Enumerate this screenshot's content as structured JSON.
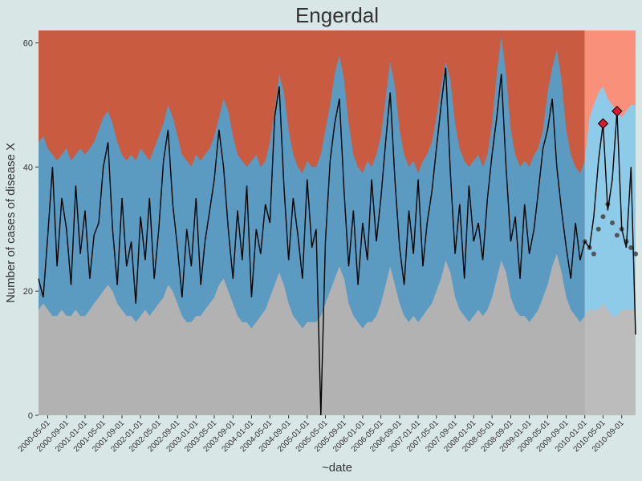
{
  "chart_data": {
    "type": "area",
    "title": "Engerdal",
    "xlabel": "~date",
    "ylabel": "Number of cases of disease X",
    "x": [
      "2000-03-01",
      "2000-04-01",
      "2000-05-01",
      "2000-06-01",
      "2000-07-01",
      "2000-08-01",
      "2000-09-01",
      "2000-10-01",
      "2000-11-01",
      "2000-12-01",
      "2001-01-01",
      "2001-02-01",
      "2001-03-01",
      "2001-04-01",
      "2001-05-01",
      "2001-06-01",
      "2001-07-01",
      "2001-08-01",
      "2001-09-01",
      "2001-10-01",
      "2001-11-01",
      "2001-12-01",
      "2002-01-01",
      "2002-02-01",
      "2002-03-01",
      "2002-04-01",
      "2002-05-01",
      "2002-06-01",
      "2002-07-01",
      "2002-08-01",
      "2002-09-01",
      "2002-10-01",
      "2002-11-01",
      "2002-12-01",
      "2003-01-01",
      "2003-02-01",
      "2003-03-01",
      "2003-04-01",
      "2003-05-01",
      "2003-06-01",
      "2003-07-01",
      "2003-08-01",
      "2003-09-01",
      "2003-10-01",
      "2003-11-01",
      "2003-12-01",
      "2004-01-01",
      "2004-02-01",
      "2004-03-01",
      "2004-04-01",
      "2004-05-01",
      "2004-06-01",
      "2004-07-01",
      "2004-08-01",
      "2004-09-01",
      "2004-10-01",
      "2004-11-01",
      "2004-12-01",
      "2005-01-01",
      "2005-02-01",
      "2005-03-01",
      "2005-04-01",
      "2005-05-01",
      "2005-06-01",
      "2005-07-01",
      "2005-08-01",
      "2005-09-01",
      "2005-10-01",
      "2005-11-01",
      "2005-12-01",
      "2006-01-01",
      "2006-02-01",
      "2006-03-01",
      "2006-04-01",
      "2006-05-01",
      "2006-06-01",
      "2006-07-01",
      "2006-08-01",
      "2006-09-01",
      "2006-10-01",
      "2006-11-01",
      "2006-12-01",
      "2007-01-01",
      "2007-02-01",
      "2007-03-01",
      "2007-04-01",
      "2007-05-01",
      "2007-06-01",
      "2007-07-01",
      "2007-08-01",
      "2007-09-01",
      "2007-10-01",
      "2007-11-01",
      "2007-12-01",
      "2008-01-01",
      "2008-02-01",
      "2008-03-01",
      "2008-04-01",
      "2008-05-01",
      "2008-06-01",
      "2008-07-01",
      "2008-08-01",
      "2008-09-01",
      "2008-10-01",
      "2008-11-01",
      "2008-12-01",
      "2009-01-01",
      "2009-02-01",
      "2009-03-01",
      "2009-04-01",
      "2009-05-01",
      "2009-06-01",
      "2009-07-01",
      "2009-08-01",
      "2009-09-01",
      "2009-10-01",
      "2009-11-01",
      "2009-12-01",
      "2010-01-01",
      "2010-02-01",
      "2010-03-01",
      "2010-04-01",
      "2010-05-01",
      "2010-06-01",
      "2010-07-01",
      "2010-08-01",
      "2010-09-01",
      "2010-10-01",
      "2010-11-01",
      "2010-12-01"
    ],
    "values": [
      22,
      19,
      29,
      40,
      24,
      35,
      30,
      21,
      37,
      26,
      33,
      22,
      29,
      31,
      40,
      44,
      30,
      21,
      35,
      24,
      28,
      18,
      32,
      25,
      35,
      22,
      30,
      41,
      46,
      34,
      27,
      19,
      30,
      24,
      35,
      21,
      28,
      33,
      38,
      46,
      40,
      30,
      22,
      33,
      25,
      37,
      19,
      30,
      26,
      34,
      31,
      48,
      53,
      37,
      25,
      35,
      29,
      22,
      38,
      27,
      30,
      0,
      28,
      41,
      47,
      51,
      36,
      24,
      33,
      21,
      31,
      25,
      38,
      28,
      35,
      44,
      52,
      38,
      27,
      21,
      33,
      26,
      38,
      24,
      31,
      36,
      43,
      50,
      56,
      39,
      26,
      34,
      22,
      37,
      28,
      31,
      25,
      35,
      42,
      48,
      55,
      40,
      28,
      32,
      22,
      34,
      26,
      30,
      36,
      43,
      46,
      51,
      40,
      33,
      27,
      22,
      31,
      25,
      28,
      27,
      32,
      41,
      47,
      33,
      38,
      49,
      30,
      27,
      40,
      13
    ],
    "lower": [
      17,
      18,
      17,
      16,
      16,
      17,
      16,
      16,
      17,
      16,
      16,
      17,
      18,
      19,
      20,
      21,
      20,
      18,
      17,
      16,
      16,
      15,
      16,
      17,
      16,
      17,
      18,
      19,
      21,
      20,
      18,
      16,
      15,
      15,
      16,
      16,
      17,
      18,
      19,
      21,
      22,
      20,
      18,
      16,
      15,
      15,
      14,
      15,
      16,
      17,
      19,
      21,
      23,
      21,
      18,
      16,
      15,
      14,
      15,
      15,
      15,
      16,
      18,
      20,
      22,
      24,
      22,
      18,
      16,
      15,
      14,
      15,
      15,
      16,
      18,
      21,
      24,
      21,
      18,
      16,
      15,
      16,
      15,
      16,
      17,
      18,
      20,
      22,
      25,
      23,
      19,
      17,
      16,
      15,
      16,
      17,
      16,
      17,
      19,
      22,
      25,
      23,
      19,
      17,
      16,
      16,
      15,
      16,
      17,
      19,
      21,
      24,
      26,
      23,
      19,
      17,
      16,
      15,
      16,
      17,
      17,
      17,
      18,
      17,
      16,
      16,
      17,
      17,
      17,
      17
    ],
    "upper": [
      44,
      45,
      43,
      42,
      41,
      42,
      43,
      41,
      42,
      43,
      42,
      43,
      44,
      46,
      48,
      49,
      47,
      44,
      42,
      41,
      42,
      41,
      43,
      42,
      41,
      43,
      45,
      47,
      50,
      48,
      45,
      42,
      41,
      40,
      42,
      41,
      42,
      43,
      45,
      48,
      51,
      49,
      45,
      42,
      41,
      40,
      41,
      42,
      40,
      41,
      44,
      49,
      55,
      52,
      46,
      42,
      40,
      39,
      41,
      40,
      40,
      42,
      46,
      50,
      55,
      58,
      54,
      47,
      42,
      40,
      39,
      41,
      40,
      42,
      45,
      51,
      57,
      53,
      46,
      42,
      40,
      41,
      39,
      41,
      42,
      44,
      48,
      53,
      57,
      54,
      47,
      43,
      41,
      40,
      41,
      42,
      40,
      42,
      47,
      55,
      61,
      55,
      46,
      42,
      40,
      41,
      40,
      42,
      43,
      46,
      52,
      56,
      59,
      54,
      46,
      42,
      40,
      39,
      41,
      48,
      50,
      52,
      53,
      51,
      50,
      49,
      48,
      49,
      50,
      50
    ],
    "forecast": {
      "x": [
        "2010-01-01",
        "2010-02-01",
        "2010-03-01",
        "2010-04-01",
        "2010-05-01",
        "2010-06-01",
        "2010-07-01",
        "2010-08-01",
        "2010-09-01",
        "2010-10-01",
        "2010-11-01",
        "2010-12-01"
      ],
      "values": [
        28,
        27,
        26,
        30,
        32,
        34,
        31,
        29,
        30,
        28,
        27,
        26
      ]
    },
    "alarms": {
      "x": [
        "2010-05-01",
        "2010-08-01"
      ],
      "values": [
        47,
        49
      ]
    },
    "colors": {
      "high": "#c95b40",
      "mid": "#5b9bc2",
      "low": "#b2b2b2",
      "high_forecast": "#f9917a",
      "mid_forecast": "#8dcbe8",
      "low_forecast": "#bcbcbc",
      "line": "#000000",
      "points": "#555555",
      "alarm": "#e0182a"
    },
    "xlim": [
      "2000-03-01",
      "2010-12-01"
    ],
    "ylim": [
      0,
      62
    ],
    "yticks": [
      0,
      20,
      40,
      60
    ],
    "xticks": [
      "2000-05-01",
      "2000-09-01",
      "2001-01-01",
      "2001-05-01",
      "2001-09-01",
      "2002-01-01",
      "2002-05-01",
      "2002-09-01",
      "2003-01-01",
      "2003-05-01",
      "2003-09-01",
      "2004-01-01",
      "2004-05-01",
      "2004-09-01",
      "2005-01-01",
      "2005-05-01",
      "2005-09-01",
      "2006-01-01",
      "2006-05-01",
      "2006-09-01",
      "2007-01-01",
      "2007-05-01",
      "2007-09-01",
      "2008-01-01",
      "2008-05-01",
      "2008-09-01",
      "2009-01-01",
      "2009-05-01",
      "2009-09-01",
      "2010-01-01",
      "2010-05-01",
      "2010-09-01"
    ]
  }
}
